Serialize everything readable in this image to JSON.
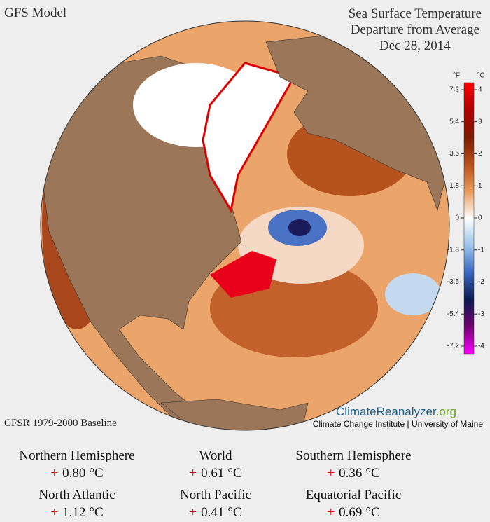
{
  "header": {
    "model": "GFS Model",
    "title": [
      "Sea Surface Temperature",
      "Departure from Average",
      "Dec 28, 2014"
    ]
  },
  "colorbar": {
    "unit_f": "°F",
    "unit_c": "°C",
    "f_ticks": [
      7.2,
      5.4,
      3.6,
      1.8,
      0,
      -1.8,
      -3.6,
      -5.4,
      -7.2
    ],
    "c_ticks": [
      4,
      3,
      2,
      1,
      0,
      -1,
      -2,
      -3,
      -4
    ],
    "colors": [
      "#ff0000",
      "#b00000",
      "#7a1a00",
      "#b8501a",
      "#e89a5a",
      "#ffffff",
      "#9cc3ea",
      "#3a68c0",
      "#0a1a50",
      "#700070",
      "#ff00ff"
    ]
  },
  "footer": {
    "baseline": "CFSR 1979-2000 Baseline",
    "logo_a": "ClimateReanalyzer",
    "logo_b": ".org",
    "credit": "Climate Change Institute | University of Maine"
  },
  "stats": [
    {
      "name": "Northern Hemisphere",
      "sign": "+",
      "value": "0.80",
      "unit": "°C"
    },
    {
      "name": "World",
      "sign": "+",
      "value": "0.61",
      "unit": "°C"
    },
    {
      "name": "Southern Hemisphere",
      "sign": "+",
      "value": "0.36",
      "unit": "°C"
    },
    {
      "name": "North Atlantic",
      "sign": "+",
      "value": "1.12",
      "unit": "°C"
    },
    {
      "name": "North Pacific",
      "sign": "+",
      "value": "0.41",
      "unit": "°C"
    },
    {
      "name": "Equatorial Pacific",
      "sign": "+",
      "value": "0.69",
      "unit": "°C"
    }
  ]
}
